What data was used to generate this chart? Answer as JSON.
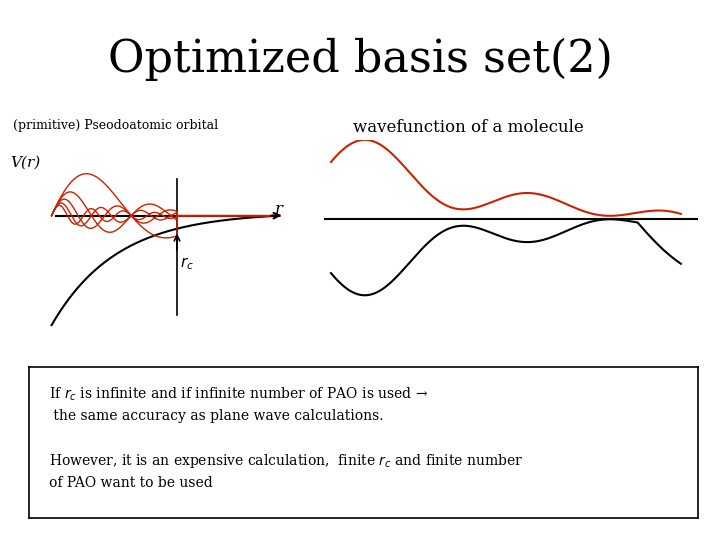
{
  "title": "Optimized basis set(2)",
  "title_fontsize": 32,
  "title_font": "serif",
  "bg_color": "#ffffff",
  "left_label": "(primitive) Pseodoatomic orbital",
  "right_label": "wavefunction of a molecule",
  "vr_label": "V(r)",
  "r_label": "r",
  "rc_label": "r_c",
  "text_box_lines": [
    "If $r_c$ is infinite and if infinite number of PAO is used →",
    " the same accuracy as plane wave calculations.",
    "",
    "However, it is an expensive calculation,  finite $r_c$ and finite number",
    "of PAO want to be used"
  ],
  "red_color": "#cc2200",
  "black_color": "#000000"
}
